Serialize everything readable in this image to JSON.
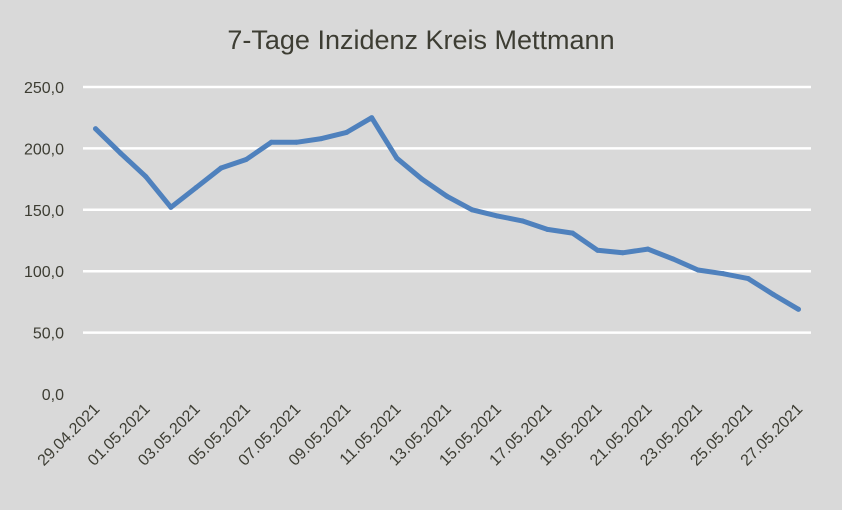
{
  "chart_data": {
    "type": "line",
    "title": "7-Tage Inzidenz Kreis Mettmann",
    "xlabel": "",
    "ylabel": "",
    "ylim": [
      0,
      250
    ],
    "yticks": [
      "0,0",
      "50,0",
      "100,0",
      "150,0",
      "200,0",
      "250,0"
    ],
    "ytick_values": [
      0,
      50,
      100,
      150,
      200,
      250
    ],
    "grid": true,
    "legend": "none",
    "x": [
      "29.04.2021",
      "30.04.2021",
      "01.05.2021",
      "02.05.2021",
      "03.05.2021",
      "04.05.2021",
      "05.05.2021",
      "06.05.2021",
      "07.05.2021",
      "08.05.2021",
      "09.05.2021",
      "10.05.2021",
      "11.05.2021",
      "12.05.2021",
      "13.05.2021",
      "14.05.2021",
      "15.05.2021",
      "16.05.2021",
      "17.05.2021",
      "18.05.2021",
      "19.05.2021",
      "20.05.2021",
      "21.05.2021",
      "22.05.2021",
      "23.05.2021",
      "24.05.2021",
      "25.05.2021",
      "26.05.2021",
      "27.05.2021"
    ],
    "xtick_labels": [
      "29.04.2021",
      "01.05.2021",
      "03.05.2021",
      "05.05.2021",
      "07.05.2021",
      "09.05.2021",
      "11.05.2021",
      "13.05.2021",
      "15.05.2021",
      "17.05.2021",
      "19.05.2021",
      "21.05.2021",
      "23.05.2021",
      "25.05.2021",
      "27.05.2021"
    ],
    "series": [
      {
        "values": [
          216,
          196,
          177,
          152,
          168,
          184,
          191,
          205,
          205,
          208,
          213,
          225,
          192,
          175,
          161,
          150,
          145,
          141,
          134,
          131,
          117,
          115,
          118,
          110,
          101,
          98,
          94,
          81,
          69
        ],
        "color": "#4f81bd"
      }
    ]
  }
}
